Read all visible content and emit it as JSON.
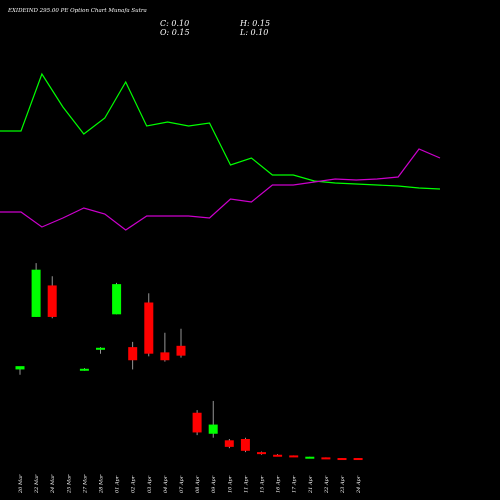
{
  "header": {
    "title": "EXIDEIND 295.00 PE Option Chart Munafa Sutra",
    "open_label": "O: 0.15",
    "close_label": "C: 0.10",
    "high_label": "H: 0.15",
    "low_label": "L: 0.10"
  },
  "colors": {
    "background": "#000000",
    "up_candle": "#00ff00",
    "down_candle": "#ff0000",
    "line_green": "#00ff00",
    "line_magenta": "#cc00cc",
    "text": "#ffffff"
  },
  "chart_data": [
    {
      "type": "line",
      "x": [
        "20 Mar",
        "22 Mar",
        "24 Mar",
        "25 Mar",
        "27 Mar",
        "28 Mar",
        "01 Apr",
        "02 Apr",
        "03 Apr",
        "04 Apr",
        "07 Apr",
        "08 Apr",
        "09 Apr",
        "10 Apr",
        "11 Apr",
        "15 Apr",
        "16 Apr",
        "17 Apr",
        "21 Apr",
        "22 Apr",
        "23 Apr",
        "24 Apr"
      ],
      "series": [
        {
          "color": "#00ff00",
          "values": [
            131,
            131,
            74,
            107,
            134,
            118,
            82,
            126,
            122,
            126,
            123,
            165,
            158,
            175,
            175,
            181,
            183,
            184,
            185,
            186,
            188,
            189
          ]
        },
        {
          "color": "#cc00cc",
          "values": [
            212,
            212,
            227,
            218,
            208,
            214,
            230,
            216,
            216,
            216,
            218,
            199,
            202,
            185,
            185,
            182,
            179,
            180,
            179,
            177,
            149,
            158
          ]
        }
      ],
      "ylim": [
        60,
        240
      ]
    },
    {
      "type": "candlestick",
      "x": [
        "20 Mar",
        "22 Mar",
        "24 Mar",
        "25 Mar",
        "27 Mar",
        "28 Mar",
        "01 Apr",
        "02 Apr",
        "03 Apr",
        "04 Apr",
        "07 Apr",
        "08 Apr",
        "09 Apr",
        "10 Apr",
        "11 Apr",
        "15 Apr",
        "16 Apr",
        "17 Apr",
        "21 Apr",
        "22 Apr",
        "23 Apr",
        "24 Apr"
      ],
      "candles": [
        {
          "open": 6.9,
          "high": 7.1,
          "low": 6.5,
          "close": 7.15
        },
        {
          "open": 10.9,
          "high": 15.0,
          "low": 10.9,
          "close": 14.5
        },
        {
          "open": 13.3,
          "high": 14.0,
          "low": 10.8,
          "close": 10.9
        },
        null,
        {
          "open": 6.95,
          "high": 7.0,
          "low": 6.8,
          "close": 6.95
        },
        {
          "open": 8.4,
          "high": 8.6,
          "low": 8.1,
          "close": 8.55
        },
        {
          "open": 11.1,
          "high": 13.5,
          "low": 11.1,
          "close": 13.4
        },
        {
          "open": 8.6,
          "high": 9.0,
          "low": 6.9,
          "close": 7.6
        },
        {
          "open": 12.0,
          "high": 12.7,
          "low": 7.9,
          "close": 8.1
        },
        {
          "open": 8.2,
          "high": 9.7,
          "low": 7.5,
          "close": 7.6
        },
        {
          "open": 8.7,
          "high": 10.0,
          "low": 7.8,
          "close": 7.95
        },
        {
          "open": 3.6,
          "high": 3.8,
          "low": 1.9,
          "close": 2.1
        },
        {
          "open": 2.0,
          "high": 4.5,
          "low": 1.7,
          "close": 2.7
        },
        {
          "open": 1.5,
          "high": 1.6,
          "low": 0.9,
          "close": 1.0
        },
        {
          "open": 1.6,
          "high": 1.7,
          "low": 0.6,
          "close": 0.7
        },
        {
          "open": 0.6,
          "high": 0.65,
          "low": 0.4,
          "close": 0.45
        },
        {
          "open": 0.4,
          "high": 0.45,
          "low": 0.3,
          "close": 0.3
        },
        {
          "open": 0.35,
          "high": 0.35,
          "low": 0.25,
          "close": 0.25
        },
        {
          "open": 0.2,
          "high": 0.25,
          "low": 0.15,
          "close": 0.25
        },
        {
          "open": 0.2,
          "high": 0.2,
          "low": 0.15,
          "close": 0.15
        },
        {
          "open": 0.15,
          "high": 0.15,
          "low": 0.1,
          "close": 0.1
        },
        {
          "open": 0.15,
          "high": 0.15,
          "low": 0.1,
          "close": 0.1
        }
      ],
      "ylim": [
        0,
        16
      ]
    }
  ]
}
